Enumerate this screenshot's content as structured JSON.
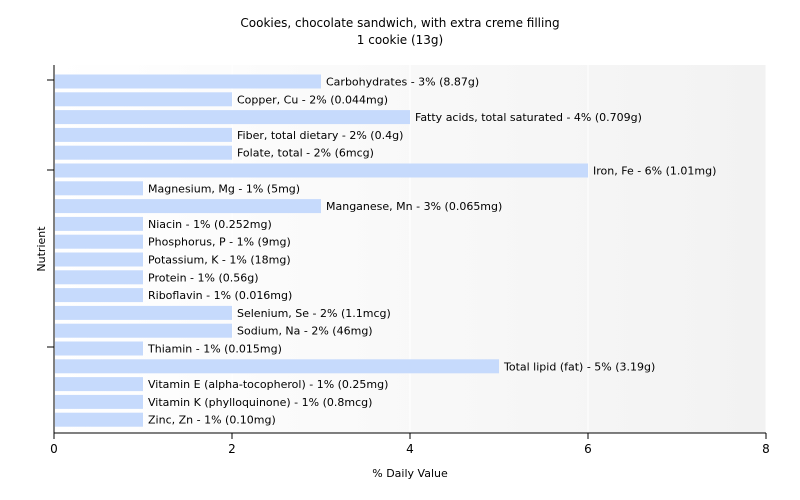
{
  "chart_data": {
    "type": "bar",
    "orientation": "horizontal",
    "title": "Cookies, chocolate sandwich, with extra creme filling",
    "subtitle": "1 cookie (13g)",
    "xlabel": "% Daily Value",
    "ylabel": "Nutrient",
    "xlim": [
      0,
      8
    ],
    "xticks": [
      0,
      2,
      4,
      6,
      8
    ],
    "grid": true,
    "colors": {
      "bar": "#c6dafc",
      "background": "#ffffff",
      "plot_gradient_end": "#f2f2f2",
      "grid": "#ffffff",
      "axis": "#000000"
    },
    "categories": [
      "Carbohydrates",
      "Copper, Cu",
      "Fatty acids, total saturated",
      "Fiber, total dietary",
      "Folate, total",
      "Iron, Fe",
      "Magnesium, Mg",
      "Manganese, Mn",
      "Niacin",
      "Phosphorus, P",
      "Potassium, K",
      "Protein",
      "Riboflavin",
      "Selenium, Se",
      "Sodium, Na",
      "Thiamin",
      "Total lipid (fat)",
      "Vitamin E (alpha-tocopherol)",
      "Vitamin K (phylloquinone)",
      "Zinc, Zn"
    ],
    "values": [
      3,
      2,
      4,
      2,
      2,
      6,
      1,
      3,
      1,
      1,
      1,
      1,
      1,
      2,
      2,
      1,
      5,
      1,
      1,
      1
    ],
    "labels": [
      "Carbohydrates - 3% (8.87g)",
      "Copper, Cu - 2% (0.044mg)",
      "Fatty acids, total saturated - 4% (0.709g)",
      "Fiber, total dietary - 2% (0.4g)",
      "Folate, total - 2% (6mcg)",
      "Iron, Fe - 6% (1.01mg)",
      "Magnesium, Mg - 1% (5mg)",
      "Manganese, Mn - 3% (0.065mg)",
      "Niacin - 1% (0.252mg)",
      "Phosphorus, P - 1% (9mg)",
      "Potassium, K - 1% (18mg)",
      "Protein - 1% (0.56g)",
      "Riboflavin - 1% (0.016mg)",
      "Selenium, Se - 2% (1.1mcg)",
      "Sodium, Na - 2% (46mg)",
      "Thiamin - 1% (0.015mg)",
      "Total lipid (fat) - 5% (3.19g)",
      "Vitamin E (alpha-tocopherol) - 1% (0.25mg)",
      "Vitamin K (phylloquinone) - 1% (0.8mcg)",
      "Zinc, Zn - 1% (0.10mg)"
    ]
  }
}
